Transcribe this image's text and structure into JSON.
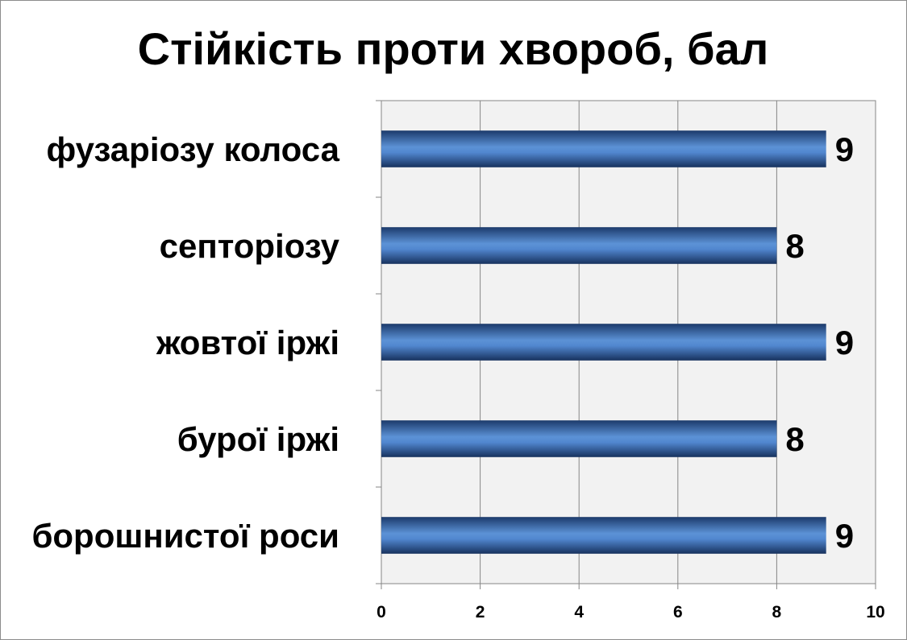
{
  "chart_data": {
    "type": "bar",
    "orientation": "horizontal",
    "title": "Стійкість проти хвороб, бал",
    "xlabel": "",
    "ylabel": "",
    "categories": [
      "фузаріозу колоса",
      "септоріозу",
      "жовтої іржі",
      "бурої іржі",
      "борошнистої роси"
    ],
    "values": [
      9,
      8,
      9,
      8,
      9
    ],
    "xlim": [
      0,
      10
    ],
    "x_ticks": [
      0,
      2,
      4,
      6,
      8,
      10
    ],
    "grid": true,
    "legend": "none",
    "bar_color": "#3f6fb3",
    "plot_background": "#f2f2f2"
  }
}
